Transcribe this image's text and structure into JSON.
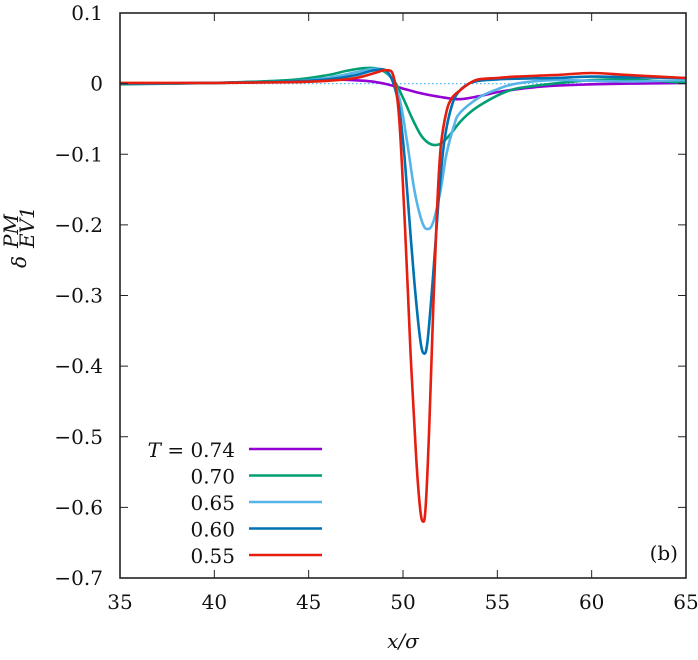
{
  "chart_data": {
    "type": "line",
    "title": "",
    "panel_label": "(b)",
    "xlabel": "x/σ",
    "ylabel": "δ_EV1^PM",
    "xlim": [
      35,
      65
    ],
    "ylim": [
      -0.7,
      0.1
    ],
    "xticks": [
      35,
      40,
      45,
      50,
      55,
      60,
      65
    ],
    "yticks": [
      0.1,
      0,
      -0.1,
      -0.2,
      -0.3,
      -0.4,
      -0.5,
      -0.6,
      -0.7
    ],
    "ytick_labels": [
      "0.1",
      "0",
      "−0.1",
      "−0.2",
      "−0.3",
      "−0.4",
      "−0.5",
      "−0.6",
      "−0.7"
    ],
    "grid": false,
    "reference_line": {
      "y": 0,
      "style": "dotted",
      "color": "#56b4e9"
    },
    "legend": {
      "position": "lower-left",
      "title_prefix": "T ="
    },
    "series": [
      {
        "name": "0.74",
        "label": "T = 0.74",
        "color": "#9400d3",
        "x": [
          35,
          40,
          44,
          46,
          48,
          49,
          50,
          51,
          52,
          53,
          54,
          55,
          56,
          57,
          58,
          60,
          62,
          65
        ],
        "y": [
          0.0,
          0.001,
          0.004,
          0.006,
          0.004,
          0.0,
          -0.007,
          -0.014,
          -0.019,
          -0.022,
          -0.018,
          -0.012,
          -0.008,
          -0.005,
          -0.003,
          -0.001,
          0.0,
          0.001
        ]
      },
      {
        "name": "0.70",
        "label": "0.70",
        "color": "#009e73",
        "x": [
          35,
          40,
          44,
          46,
          47,
          48,
          48.8,
          49.5,
          50,
          50.5,
          51,
          51.5,
          52,
          52.5,
          53,
          53.5,
          54,
          55,
          56,
          58,
          60,
          62,
          65
        ],
        "y": [
          -0.001,
          0.001,
          0.005,
          0.012,
          0.018,
          0.022,
          0.02,
          0.005,
          -0.02,
          -0.05,
          -0.075,
          -0.086,
          -0.085,
          -0.072,
          -0.055,
          -0.042,
          -0.032,
          -0.017,
          -0.007,
          0.0,
          0.005,
          0.006,
          0.001
        ]
      },
      {
        "name": "0.65",
        "label": "0.65",
        "color": "#56b4e9",
        "x": [
          35,
          40,
          44,
          46,
          47.5,
          48.5,
          49.2,
          49.8,
          50.2,
          50.6,
          51,
          51.3,
          51.6,
          52,
          52.3,
          52.7,
          53,
          54,
          55,
          56,
          58,
          60,
          62,
          65
        ],
        "y": [
          0.0,
          0.001,
          0.003,
          0.008,
          0.016,
          0.021,
          0.015,
          -0.02,
          -0.08,
          -0.15,
          -0.195,
          -0.206,
          -0.196,
          -0.15,
          -0.1,
          -0.06,
          -0.042,
          -0.02,
          -0.008,
          0.0,
          0.005,
          0.004,
          0.003,
          0.005
        ]
      },
      {
        "name": "0.60",
        "label": "0.60",
        "color": "#0072b2",
        "x": [
          35,
          40,
          44,
          46,
          47.5,
          48.5,
          49.2,
          49.7,
          50,
          50.3,
          50.6,
          50.9,
          51.1,
          51.3,
          51.6,
          51.9,
          52.2,
          52.6,
          53,
          53.5,
          54,
          55,
          56,
          58,
          60,
          62,
          65
        ],
        "y": [
          0.0,
          0.001,
          0.003,
          0.006,
          0.012,
          0.019,
          0.016,
          -0.02,
          -0.08,
          -0.18,
          -0.28,
          -0.36,
          -0.382,
          -0.365,
          -0.27,
          -0.16,
          -0.08,
          -0.03,
          -0.01,
          0.0,
          0.004,
          0.006,
          0.007,
          0.008,
          0.01,
          0.009,
          0.008
        ]
      },
      {
        "name": "0.55",
        "label": "0.55",
        "color": "#e51e10",
        "x": [
          35,
          40,
          44,
          46,
          47.5,
          48.5,
          49.1,
          49.5,
          49.8,
          50.1,
          50.4,
          50.7,
          50.9,
          51.05,
          51.2,
          51.4,
          51.6,
          51.8,
          52,
          52.3,
          52.6,
          53,
          53.5,
          54,
          55,
          56,
          58,
          60,
          62,
          65
        ],
        "y": [
          0.001,
          0.001,
          0.002,
          0.004,
          0.008,
          0.015,
          0.019,
          0.01,
          -0.05,
          -0.2,
          -0.38,
          -0.53,
          -0.6,
          -0.62,
          -0.6,
          -0.48,
          -0.32,
          -0.18,
          -0.09,
          -0.04,
          -0.02,
          -0.01,
          0.0,
          0.006,
          0.008,
          0.01,
          0.012,
          0.015,
          0.012,
          0.008
        ]
      }
    ]
  }
}
